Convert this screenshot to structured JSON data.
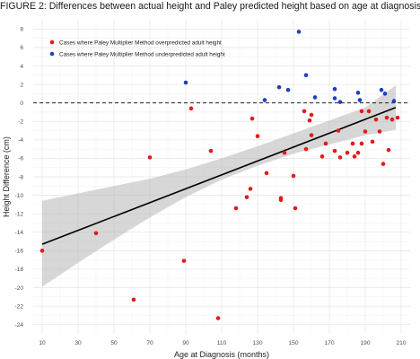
{
  "chart_data": {
    "type": "scatter",
    "title": "FIGURE 2: Differences between actual height and Paley predicted height based on age at diagnosis",
    "xlabel": "Age at Diagnosis (months)",
    "ylabel": "Height Difference (cm)",
    "xlim": [
      5,
      215
    ],
    "ylim": [
      -25,
      9
    ],
    "xticks": [
      10,
      30,
      50,
      70,
      90,
      110,
      130,
      150,
      170,
      190,
      210
    ],
    "yticks": [
      -24,
      -22,
      -20,
      -18,
      -16,
      -14,
      -12,
      -10,
      -8,
      -6,
      -4,
      -2,
      0,
      2,
      4,
      6,
      8
    ],
    "grid": true,
    "legend_position": "top-left",
    "reference_line": {
      "y": 0,
      "style": "dashed"
    },
    "regression": {
      "x": [
        10,
        207
      ],
      "y": [
        -15.3,
        -0.5
      ]
    },
    "confidence_band": {
      "x": [
        10,
        30,
        50,
        70,
        90,
        110,
        130,
        150,
        170,
        190,
        207
      ],
      "lower": [
        -19.9,
        -17.3,
        -14.8,
        -12.4,
        -10.2,
        -8.3,
        -6.8,
        -5.5,
        -4.5,
        -3.5,
        -2.9
      ],
      "upper": [
        -10.6,
        -9.8,
        -9.0,
        -8.2,
        -7.2,
        -6.0,
        -4.7,
        -3.3,
        -1.9,
        -0.5,
        1.9
      ]
    },
    "series": [
      {
        "name": "Cases where Paley Multiplier Method overpredicted adult height",
        "color": "#e31a1c",
        "points": [
          [
            10,
            -16
          ],
          [
            40,
            -14.1
          ],
          [
            61,
            -21.3
          ],
          [
            70,
            -5.9
          ],
          [
            89,
            -17.1
          ],
          [
            93,
            -0.6
          ],
          [
            104,
            -5.2
          ],
          [
            108,
            -23.3
          ],
          [
            118,
            -11.4
          ],
          [
            124,
            -10.2
          ],
          [
            126,
            -9.3
          ],
          [
            127,
            -1.7
          ],
          [
            130,
            -3.6
          ],
          [
            135,
            -7.6
          ],
          [
            143,
            -10.3
          ],
          [
            143,
            -10.5
          ],
          [
            145,
            -5.4
          ],
          [
            150,
            -7.9
          ],
          [
            151,
            -11.4
          ],
          [
            156,
            -0.9
          ],
          [
            157,
            -5
          ],
          [
            159,
            -1.9
          ],
          [
            160,
            -3.5
          ],
          [
            160,
            -1.3
          ],
          [
            166,
            -5.8
          ],
          [
            168,
            -4.4
          ],
          [
            173,
            -5.2
          ],
          [
            175,
            -3
          ],
          [
            176,
            -5.9
          ],
          [
            180,
            -5.4
          ],
          [
            183,
            -4.4
          ],
          [
            184,
            -5.8
          ],
          [
            186,
            -5.4
          ],
          [
            188,
            -4.4
          ],
          [
            188,
            -0.9
          ],
          [
            190,
            -3.1
          ],
          [
            192,
            -0.9
          ],
          [
            194,
            -4.2
          ],
          [
            196,
            -1.8
          ],
          [
            198,
            -3.1
          ],
          [
            200,
            -6.6
          ],
          [
            202,
            -1.6
          ],
          [
            203,
            -5.1
          ],
          [
            205,
            -1.8
          ],
          [
            208,
            -1.6
          ]
        ]
      },
      {
        "name": "Cases where Paley Multiplier Method underpredicted adult height",
        "color": "#1f3fbf",
        "points": [
          [
            90,
            2.2
          ],
          [
            134,
            0.3
          ],
          [
            142,
            1.7
          ],
          [
            147,
            1.4
          ],
          [
            153,
            7.7
          ],
          [
            157,
            3.0
          ],
          [
            162,
            0.6
          ],
          [
            173,
            1.5
          ],
          [
            173,
            0.5
          ],
          [
            176,
            0.1
          ],
          [
            186,
            1.1
          ],
          [
            187,
            0.3
          ],
          [
            199,
            1.4
          ],
          [
            201,
            1.0
          ],
          [
            206,
            0.2
          ]
        ]
      }
    ]
  }
}
